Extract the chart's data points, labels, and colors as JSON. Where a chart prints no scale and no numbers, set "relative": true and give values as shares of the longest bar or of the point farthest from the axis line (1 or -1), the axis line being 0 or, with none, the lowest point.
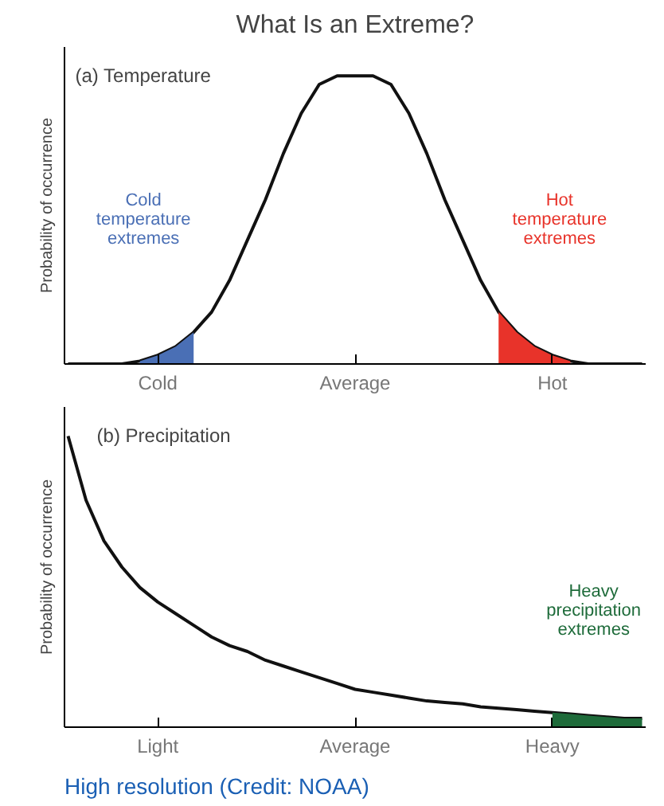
{
  "chart_data": [
    {
      "type": "line",
      "title": "What Is an Extreme?",
      "subtitle": "(a) Temperature",
      "ylabel": "Probability of occurrence",
      "relative": true,
      "grid": false,
      "categories": [
        null,
        null,
        null,
        null,
        null,
        "Cold",
        null,
        null,
        null,
        null,
        null,
        null,
        null,
        null,
        null,
        null,
        "Average",
        null,
        null,
        null,
        null,
        null,
        null,
        null,
        null,
        null,
        null,
        "Hot",
        null,
        null,
        null,
        null,
        null
      ],
      "series": [
        {
          "color": "#111111",
          "values": [
            0,
            0,
            0,
            0,
            0.01,
            0.03,
            0.06,
            0.11,
            0.18,
            0.29,
            0.43,
            0.57,
            0.73,
            0.87,
            0.97,
            1.0,
            1.0,
            1.0,
            0.97,
            0.87,
            0.73,
            0.57,
            0.43,
            0.29,
            0.18,
            0.11,
            0.06,
            0.03,
            0.01,
            0,
            0,
            0,
            0
          ]
        },
        {
          "type": "area",
          "color": "#4a6fb5",
          "values": [
            null,
            null,
            null,
            null,
            0.01,
            0.03,
            0.06,
            0.11,
            null,
            null,
            null,
            null,
            null,
            null,
            null,
            null,
            null,
            null,
            null,
            null,
            null,
            null,
            null,
            null,
            null,
            null,
            null,
            null,
            null,
            null,
            null,
            null,
            null
          ]
        },
        {
          "type": "area",
          "color": "#e8332a",
          "values": [
            null,
            null,
            null,
            null,
            null,
            null,
            null,
            null,
            null,
            null,
            null,
            null,
            null,
            null,
            null,
            null,
            null,
            null,
            null,
            null,
            null,
            null,
            null,
            null,
            0.18,
            0.11,
            0.06,
            0.03,
            0.01,
            null,
            null,
            null,
            null
          ]
        }
      ],
      "annotations": [
        "Cold temperature extremes",
        "Hot temperature extremes"
      ]
    },
    {
      "type": "line",
      "subtitle": "(b) Precipitation",
      "ylabel": "Probability of occurrence",
      "relative": true,
      "grid": false,
      "categories": [
        null,
        null,
        null,
        null,
        null,
        "Light",
        null,
        null,
        null,
        null,
        null,
        null,
        null,
        null,
        null,
        null,
        "Average",
        null,
        null,
        null,
        null,
        null,
        null,
        null,
        null,
        null,
        null,
        "Heavy",
        null,
        null,
        null,
        null,
        null
      ],
      "series": [
        {
          "color": "#111111",
          "values": [
            1.0,
            0.78,
            0.64,
            0.55,
            0.48,
            0.43,
            0.39,
            0.35,
            0.31,
            0.28,
            0.26,
            0.23,
            0.21,
            0.19,
            0.17,
            0.15,
            0.13,
            0.12,
            0.11,
            0.1,
            0.09,
            0.085,
            0.08,
            0.07,
            0.065,
            0.06,
            0.055,
            0.05,
            0.045,
            0.04,
            0.035,
            0.03,
            0.03
          ]
        },
        {
          "type": "area",
          "color": "#1e6b3a",
          "values": [
            null,
            null,
            null,
            null,
            null,
            null,
            null,
            null,
            null,
            null,
            null,
            null,
            null,
            null,
            null,
            null,
            null,
            null,
            null,
            null,
            null,
            null,
            null,
            null,
            null,
            null,
            null,
            0.05,
            0.045,
            0.04,
            0.035,
            0.03,
            0.03
          ]
        }
      ],
      "annotations": [
        "Heavy precipitation extremes",
        "High resolution (Credit: NOAA)"
      ]
    }
  ]
}
